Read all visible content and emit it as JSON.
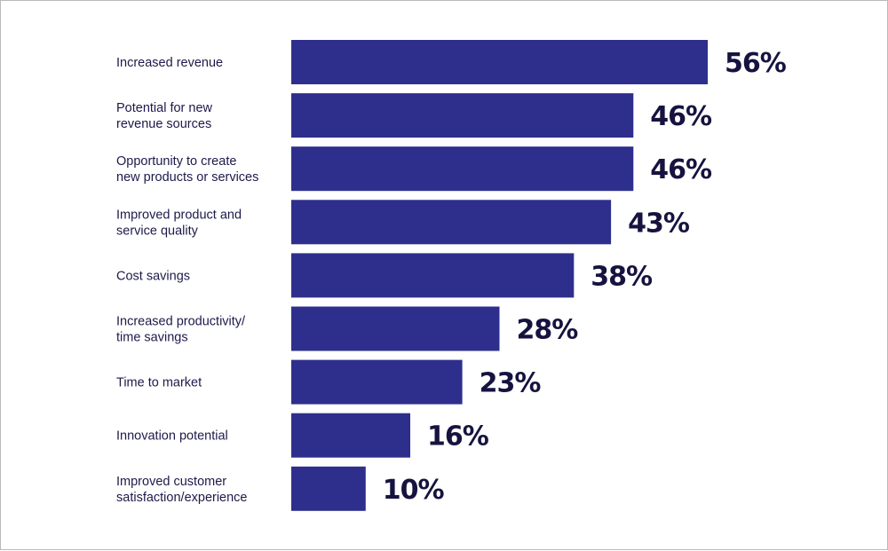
{
  "chart_data": {
    "type": "bar",
    "orientation": "horizontal",
    "title": "",
    "xlabel": "",
    "ylabel": "",
    "bar_color": "#2e2f8c",
    "label_color": "#16133f",
    "value_suffix": "%",
    "xlim": [
      0,
      56
    ],
    "grid": false,
    "legend": "none",
    "categories": [
      [
        "Increased revenue"
      ],
      [
        "Potential for new",
        "revenue sources"
      ],
      [
        "Opportunity to create",
        "new products or services"
      ],
      [
        "Improved product and",
        "service quality"
      ],
      [
        "Cost savings"
      ],
      [
        "Increased productivity/",
        "time savings"
      ],
      [
        "Time to market"
      ],
      [
        "Innovation potential"
      ],
      [
        "Improved customer",
        "satisfaction/experience"
      ]
    ],
    "values": [
      56,
      46,
      46,
      43,
      38,
      28,
      23,
      16,
      10
    ]
  }
}
